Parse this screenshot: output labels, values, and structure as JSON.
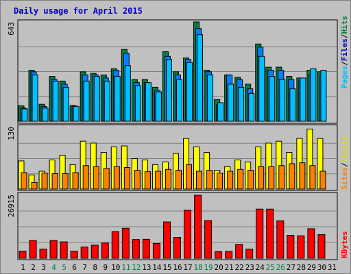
{
  "title": "Daily usage for April 2015",
  "colors": {
    "hits": "#008040",
    "files": "#0080ff",
    "pages": "#00c0ff",
    "visits": "#ffff00",
    "sites": "#ff8000",
    "kbytes": "#ff0000",
    "weekend_label": "#008040",
    "weekday_label": "#000000"
  },
  "chart_data": [
    {
      "type": "bar",
      "panel": "hits-files-pages",
      "ymax_label": "643",
      "ylim": [
        0,
        643
      ],
      "legend": {
        "pages": "Pages",
        "files": "Files",
        "hits": "Hits",
        "sep": "/"
      },
      "categories": [
        "1",
        "2",
        "3",
        "4",
        "5",
        "6",
        "7",
        "8",
        "9",
        "10",
        "11",
        "12",
        "13",
        "14",
        "15",
        "16",
        "17",
        "18",
        "19",
        "20",
        "21",
        "22",
        "23",
        "24",
        "25",
        "26",
        "27",
        "28",
        "29",
        "30",
        "31"
      ],
      "series": [
        {
          "name": "Hits",
          "values": [
            100,
            330,
            110,
            290,
            260,
            102,
            320,
            310,
            300,
            340,
            465,
            270,
            270,
            220,
            450,
            320,
            410,
            643,
            330,
            140,
            300,
            285,
            240,
            500,
            350,
            350,
            290,
            280,
            330,
            320,
            0
          ]
        },
        {
          "name": "Files",
          "values": [
            85,
            320,
            95,
            270,
            240,
            98,
            300,
            300,
            280,
            330,
            440,
            250,
            250,
            200,
            420,
            300,
            400,
            600,
            320,
            105,
            300,
            270,
            210,
            480,
            330,
            330,
            270,
            260,
            300,
            300,
            0
          ]
        },
        {
          "name": "Pages",
          "values": [
            80,
            300,
            85,
            260,
            220,
            96,
            260,
            290,
            260,
            290,
            360,
            230,
            250,
            190,
            400,
            270,
            380,
            560,
            300,
            120,
            240,
            220,
            180,
            420,
            290,
            270,
            210,
            280,
            340,
            330,
            0
          ]
        }
      ]
    },
    {
      "type": "bar",
      "panel": "visits-sites",
      "ymax_label": "130",
      "ylim": [
        0,
        130
      ],
      "legend": {
        "sites": "Sites",
        "visits": "Visits",
        "sep": "/"
      },
      "categories": [
        "1",
        "2",
        "3",
        "4",
        "5",
        "6",
        "7",
        "8",
        "9",
        "10",
        "11",
        "12",
        "13",
        "14",
        "15",
        "16",
        "17",
        "18",
        "19",
        "20",
        "21",
        "22",
        "23",
        "24",
        "25",
        "26",
        "27",
        "28",
        "29",
        "30",
        "31"
      ],
      "series": [
        {
          "name": "Visits",
          "values": [
            60,
            30,
            38,
            62,
            72,
            52,
            102,
            98,
            78,
            90,
            92,
            65,
            62,
            52,
            58,
            76,
            108,
            90,
            78,
            40,
            48,
            62,
            58,
            90,
            98,
            102,
            78,
            108,
            128,
            108,
            0
          ]
        },
        {
          "name": "Sites",
          "values": [
            35,
            14,
            34,
            33,
            33,
            35,
            50,
            48,
            44,
            48,
            46,
            40,
            37,
            38,
            42,
            40,
            52,
            38,
            40,
            34,
            38,
            42,
            40,
            48,
            48,
            50,
            54,
            56,
            50,
            38,
            0
          ]
        }
      ]
    },
    {
      "type": "bar",
      "panel": "kbytes",
      "ymax_label": "26915",
      "ylim": [
        0,
        26915
      ],
      "legend": {
        "kbytes": "KBytes"
      },
      "categories": [
        "1",
        "2",
        "3",
        "4",
        "5",
        "6",
        "7",
        "8",
        "9",
        "10",
        "11",
        "12",
        "13",
        "14",
        "15",
        "16",
        "17",
        "18",
        "19",
        "20",
        "21",
        "22",
        "23",
        "24",
        "25",
        "26",
        "27",
        "28",
        "29",
        "30",
        "31"
      ],
      "series": [
        {
          "name": "KBytes",
          "values": [
            3000,
            7600,
            3900,
            7600,
            7000,
            3000,
            4800,
            5600,
            6500,
            11400,
            12800,
            8000,
            8100,
            6300,
            15500,
            8900,
            20500,
            26915,
            16100,
            2800,
            2900,
            5900,
            3900,
            21000,
            21000,
            16000,
            9800,
            9600,
            12600,
            10100,
            0
          ]
        }
      ]
    }
  ]
}
